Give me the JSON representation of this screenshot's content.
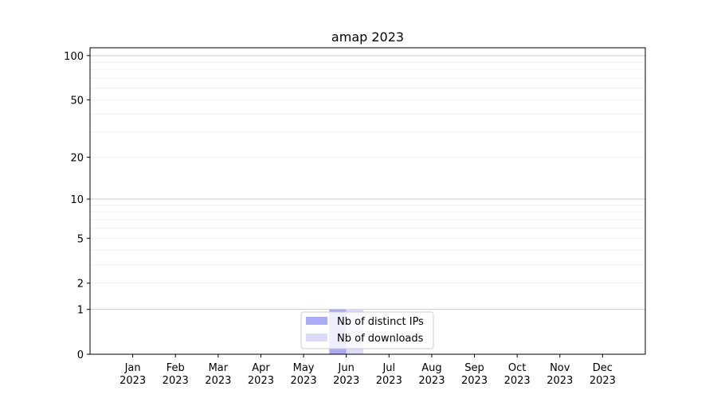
{
  "chart_data": {
    "type": "bar",
    "title": "amap 2023",
    "xlabel": "",
    "ylabel": "",
    "y_scale": "log10(1+y)",
    "ylim": [
      0,
      113
    ],
    "categories": [
      "Jan\n2023",
      "Feb\n2023",
      "Mar\n2023",
      "Apr\n2023",
      "May\n2023",
      "Jun\n2023",
      "Jul\n2023",
      "Aug\n2023",
      "Sep\n2023",
      "Oct\n2023",
      "Nov\n2023",
      "Dec\n2023"
    ],
    "y_ticks": [
      0,
      1,
      2,
      5,
      10,
      20,
      50,
      100
    ],
    "y_tick_labels": [
      "0",
      "1",
      "2",
      "5",
      "10",
      "20",
      "50",
      "100"
    ],
    "grid": true,
    "legend_position": "lower-center",
    "series": [
      {
        "name": "Nb of distinct IPs",
        "color": "#aaaaf5",
        "values": [
          0,
          0,
          0,
          0,
          0,
          1,
          0,
          0,
          0,
          0,
          0,
          0
        ]
      },
      {
        "name": "Nb of downloads",
        "color": "#dcdcf8",
        "values": [
          0,
          0,
          0,
          0,
          0,
          1,
          0,
          0,
          0,
          0,
          0,
          0
        ]
      }
    ]
  }
}
